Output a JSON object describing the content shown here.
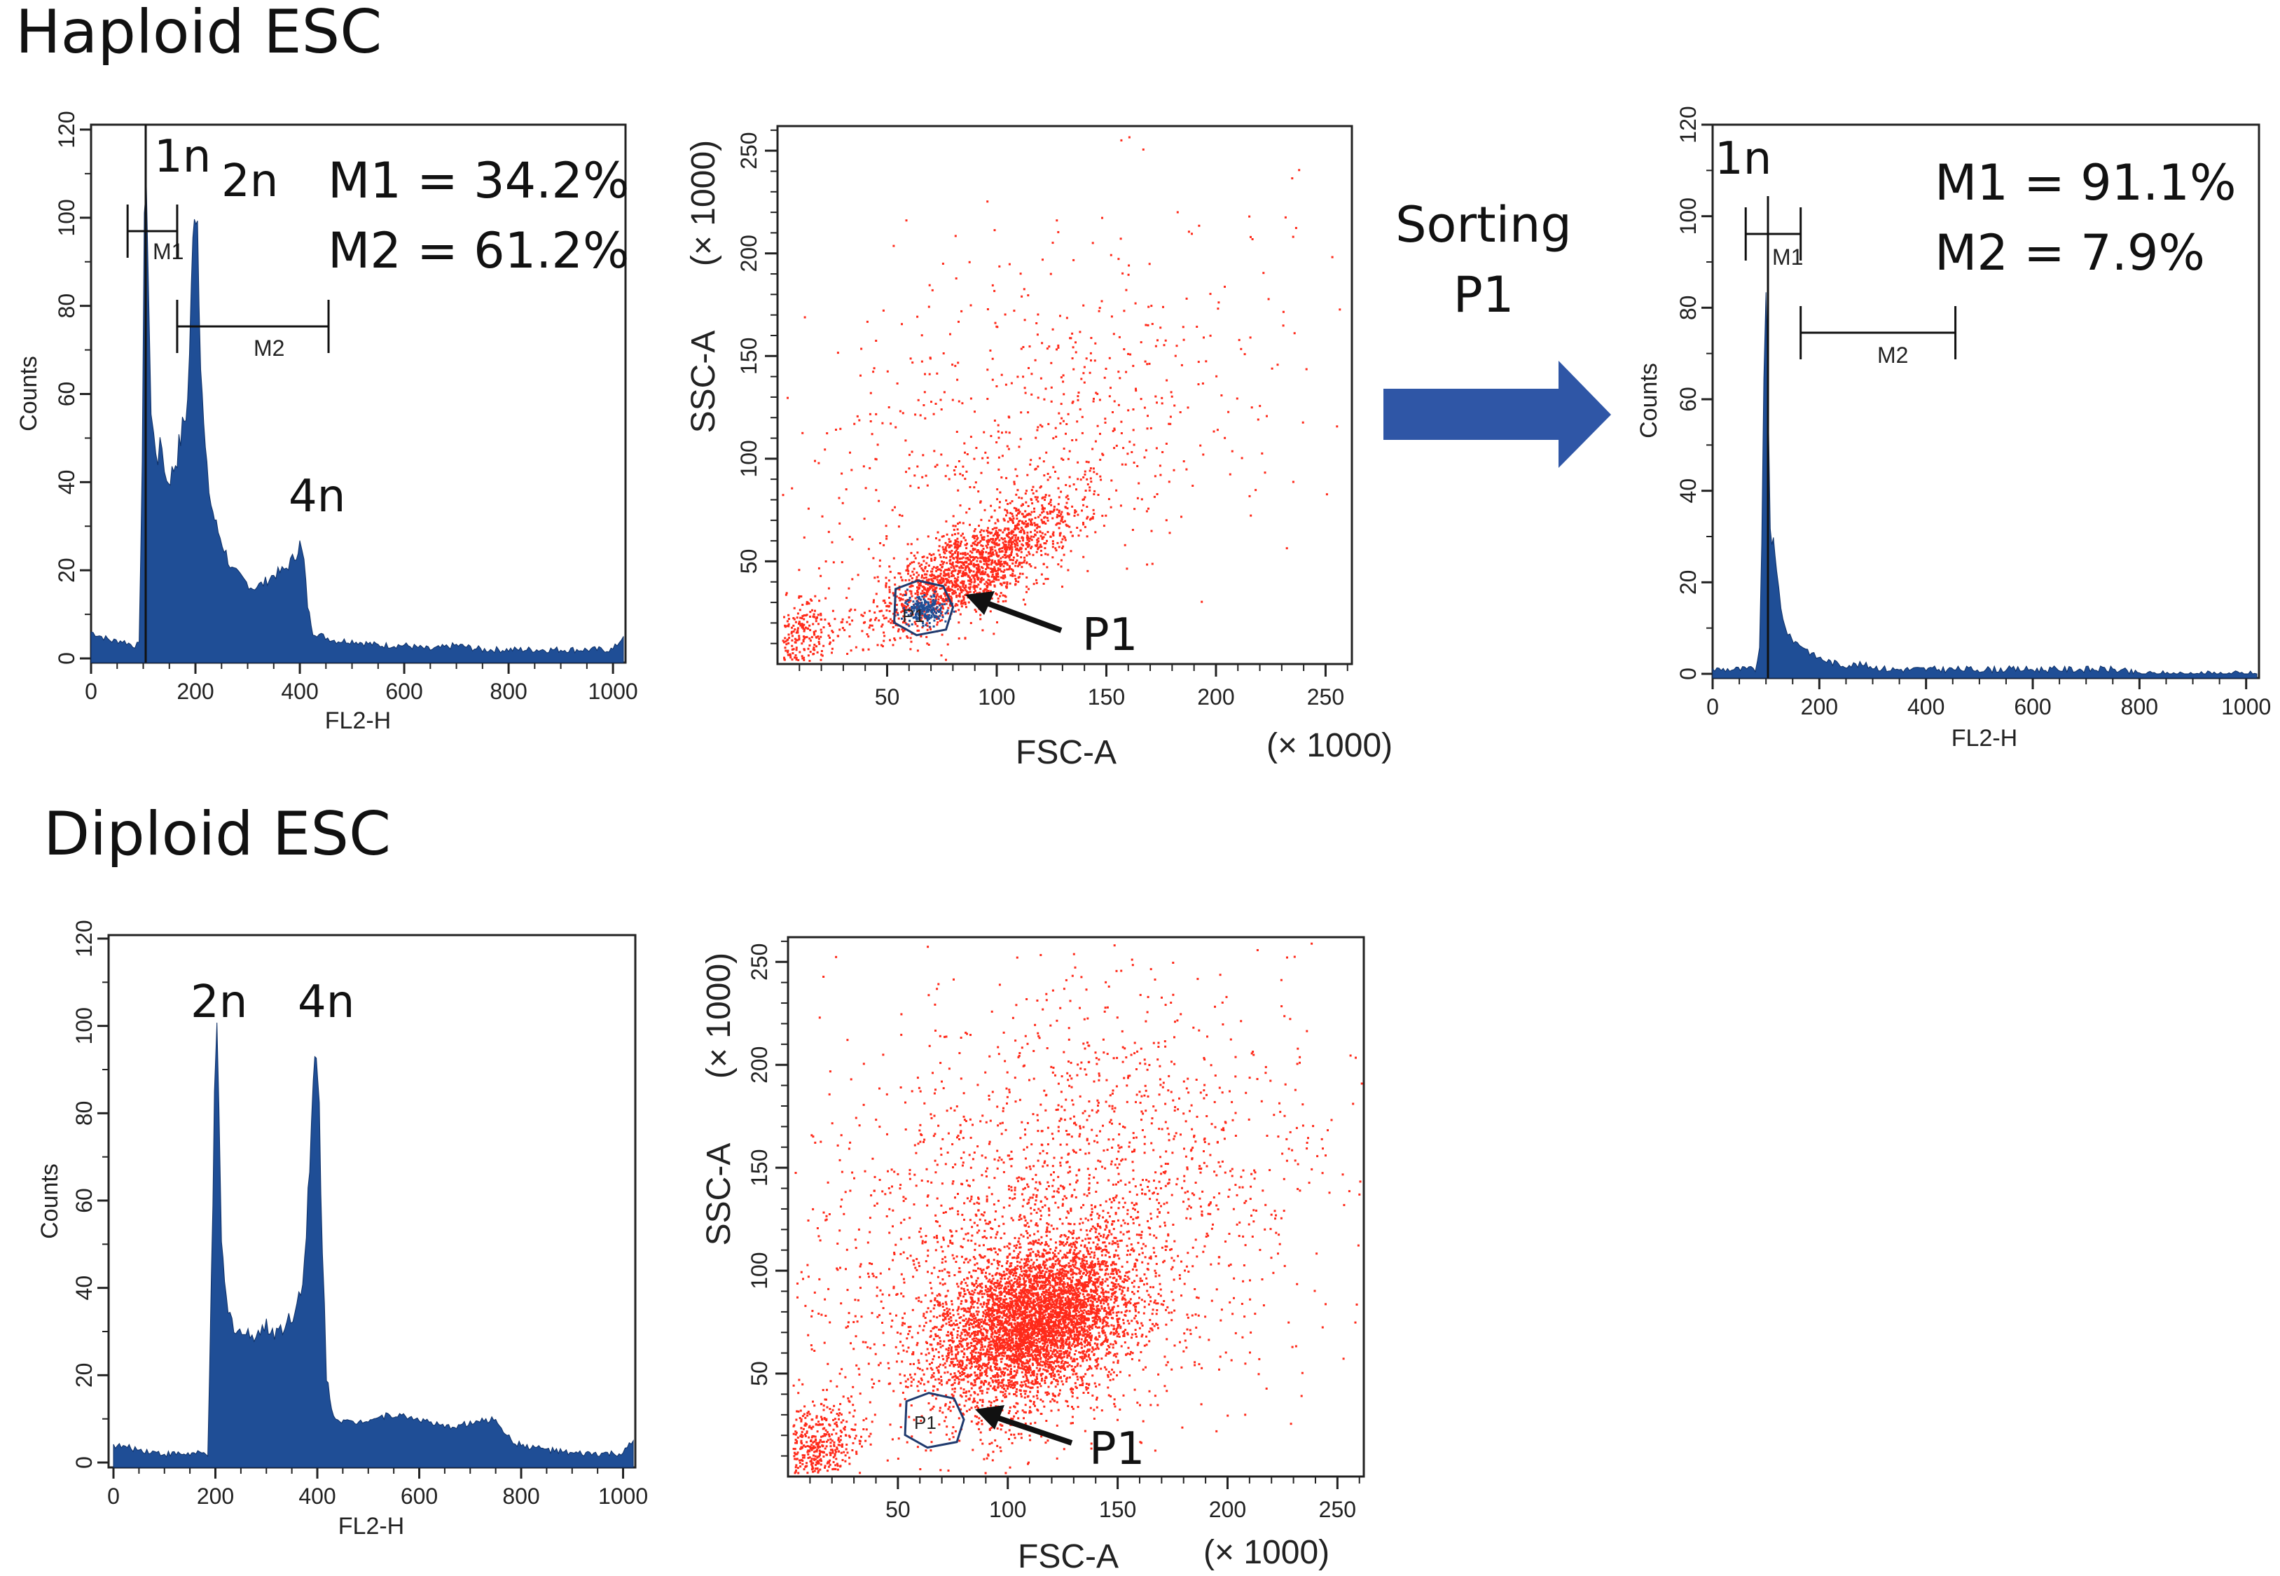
{
  "figure": {
    "haploid_title": "Haploid ESC",
    "diploid_title": "Diploid ESC",
    "sorting_line1": "Sorting",
    "sorting_line2": "P1",
    "arrow_color": "#2f56a6"
  },
  "colors": {
    "histogram_fill": "#1f4e96",
    "scatter": "#ff2a1a",
    "gate_fill": "#1f4e96"
  },
  "chart_data": [
    {
      "id": "hist_haploid",
      "type": "area",
      "xlabel": "FL2-H",
      "ylabel": "Counts",
      "xlim": [
        0,
        1024
      ],
      "ylim": [
        0,
        120
      ],
      "xticks": [
        "0",
        "200",
        "400",
        "600",
        "800",
        "1000"
      ],
      "yticks": [
        "0",
        "20",
        "40",
        "60",
        "80",
        "100",
        "120"
      ],
      "x": [
        0,
        20,
        40,
        60,
        80,
        92,
        98,
        102,
        106,
        110,
        115,
        120,
        128,
        136,
        145,
        155,
        165,
        175,
        185,
        192,
        198,
        204,
        210,
        216,
        222,
        230,
        240,
        255,
        270,
        290,
        310,
        330,
        350,
        370,
        390,
        400,
        408,
        415,
        425,
        445,
        470,
        500,
        550,
        600,
        650,
        700,
        750,
        800,
        850,
        900,
        950,
        1000,
        1020
      ],
      "y": [
        6,
        5,
        4,
        4,
        3,
        3,
        45,
        95,
        112,
        85,
        55,
        50,
        46,
        48,
        40,
        42,
        46,
        52,
        58,
        82,
        105,
        100,
        70,
        52,
        42,
        35,
        30,
        25,
        20,
        18,
        16,
        17,
        19,
        20,
        23,
        26,
        22,
        12,
        6,
        5,
        4,
        4,
        3,
        3,
        2,
        3,
        2,
        2,
        2,
        2,
        2,
        2,
        5
      ],
      "annotations": [
        "1n",
        "2n",
        "4n"
      ],
      "markers": [
        {
          "name": "M1",
          "range": [
            70,
            165
          ]
        },
        {
          "name": "M2",
          "range": [
            165,
            455
          ]
        }
      ],
      "stat_labels": [
        "M1 = 34.2%",
        "M2 = 61.2%"
      ]
    },
    {
      "id": "scatter_haploid",
      "type": "scatter",
      "xlabel": "FSC-A",
      "ylabel": "SSC-A",
      "x_unit": "(× 1000)",
      "y_unit": "(× 1000)",
      "xlim": [
        0,
        262
      ],
      "ylim": [
        0,
        262
      ],
      "xticks": [
        "50",
        "100",
        "150",
        "200",
        "250"
      ],
      "yticks": [
        "50",
        "100",
        "150",
        "200",
        "250"
      ],
      "populations": [
        {
          "name": "main",
          "n": 1700,
          "cx": 88,
          "cy": 48,
          "sx": 22,
          "sy": 16,
          "rho": 0.75
        },
        {
          "name": "sparse",
          "n": 700,
          "cx": 115,
          "cy": 110,
          "sx": 55,
          "sy": 50,
          "rho": 0.4
        },
        {
          "name": "debris",
          "n": 250,
          "cx": 10,
          "cy": 14,
          "sx": 8,
          "sy": 10,
          "rho": 0.3
        }
      ],
      "gate": {
        "name": "P1",
        "cx": 66,
        "cy": 27
      },
      "gate_label": "P1"
    },
    {
      "id": "hist_sorted",
      "type": "area",
      "xlabel": "FL2-H",
      "ylabel": "Counts",
      "xlim": [
        0,
        1024
      ],
      "ylim": [
        0,
        120
      ],
      "xticks": [
        "0",
        "200",
        "400",
        "600",
        "800",
        "1000"
      ],
      "yticks": [
        "0",
        "20",
        "40",
        "60",
        "80",
        "100",
        "120"
      ],
      "x": [
        0,
        40,
        80,
        88,
        92,
        96,
        100,
        104,
        108,
        114,
        120,
        128,
        136,
        145,
        155,
        170,
        190,
        210,
        240,
        280,
        330,
        400,
        500,
        600,
        700,
        750,
        800,
        900,
        1000,
        1020
      ],
      "y": [
        1,
        1,
        1,
        5,
        30,
        62,
        78,
        62,
        32,
        28,
        22,
        15,
        10,
        8,
        7,
        6,
        4,
        3,
        2,
        2,
        1,
        1,
        1,
        1,
        1,
        1,
        0,
        0,
        0,
        0
      ],
      "annotations": [
        "1n"
      ],
      "markers": [
        {
          "name": "M1",
          "range": [
            62,
            165
          ]
        },
        {
          "name": "M2",
          "range": [
            165,
            455
          ]
        }
      ],
      "stat_labels": [
        "M1 = 91.1%",
        "M2 =  7.9%"
      ]
    },
    {
      "id": "hist_diploid",
      "type": "area",
      "xlabel": "FL2-H",
      "ylabel": "Counts",
      "xlim": [
        0,
        1024
      ],
      "ylim": [
        0,
        120
      ],
      "xticks": [
        "0",
        "200",
        "400",
        "600",
        "800",
        "1000"
      ],
      "yticks": [
        "0",
        "20",
        "40",
        "60",
        "80",
        "100",
        "120"
      ],
      "x": [
        0,
        50,
        100,
        150,
        185,
        192,
        198,
        203,
        207,
        212,
        218,
        225,
        240,
        260,
        280,
        300,
        320,
        340,
        360,
        375,
        385,
        392,
        398,
        404,
        410,
        418,
        428,
        440,
        470,
        500,
        550,
        600,
        650,
        700,
        750,
        780,
        800,
        850,
        900,
        950,
        1000,
        1020
      ],
      "y": [
        4,
        3,
        2,
        2,
        2,
        40,
        80,
        95,
        78,
        52,
        40,
        34,
        31,
        29,
        30,
        31,
        30,
        32,
        36,
        46,
        66,
        86,
        93,
        80,
        50,
        20,
        12,
        10,
        9,
        10,
        11,
        10,
        8,
        9,
        10,
        5,
        4,
        3,
        2,
        2,
        2,
        5
      ],
      "annotations": [
        "2n",
        "4n"
      ]
    },
    {
      "id": "scatter_diploid",
      "type": "scatter",
      "xlabel": "FSC-A",
      "ylabel": "SSC-A",
      "x_unit": "(× 1000)",
      "y_unit": "(× 1000)",
      "xlim": [
        0,
        262
      ],
      "ylim": [
        0,
        262
      ],
      "xticks": [
        "50",
        "100",
        "150",
        "200",
        "250"
      ],
      "yticks": [
        "50",
        "100",
        "150",
        "200",
        "250"
      ],
      "populations": [
        {
          "name": "main",
          "n": 4800,
          "cx": 112,
          "cy": 75,
          "sx": 22,
          "sy": 20,
          "rho": 0.35
        },
        {
          "name": "sparse",
          "n": 2200,
          "cx": 120,
          "cy": 120,
          "sx": 60,
          "sy": 60,
          "rho": 0.3
        },
        {
          "name": "debris",
          "n": 500,
          "cx": 12,
          "cy": 14,
          "sx": 9,
          "sy": 12,
          "rho": 0.2
        }
      ],
      "gate": {
        "name": "P1",
        "cx": 66,
        "cy": 27
      },
      "gate_label": "P1"
    }
  ]
}
